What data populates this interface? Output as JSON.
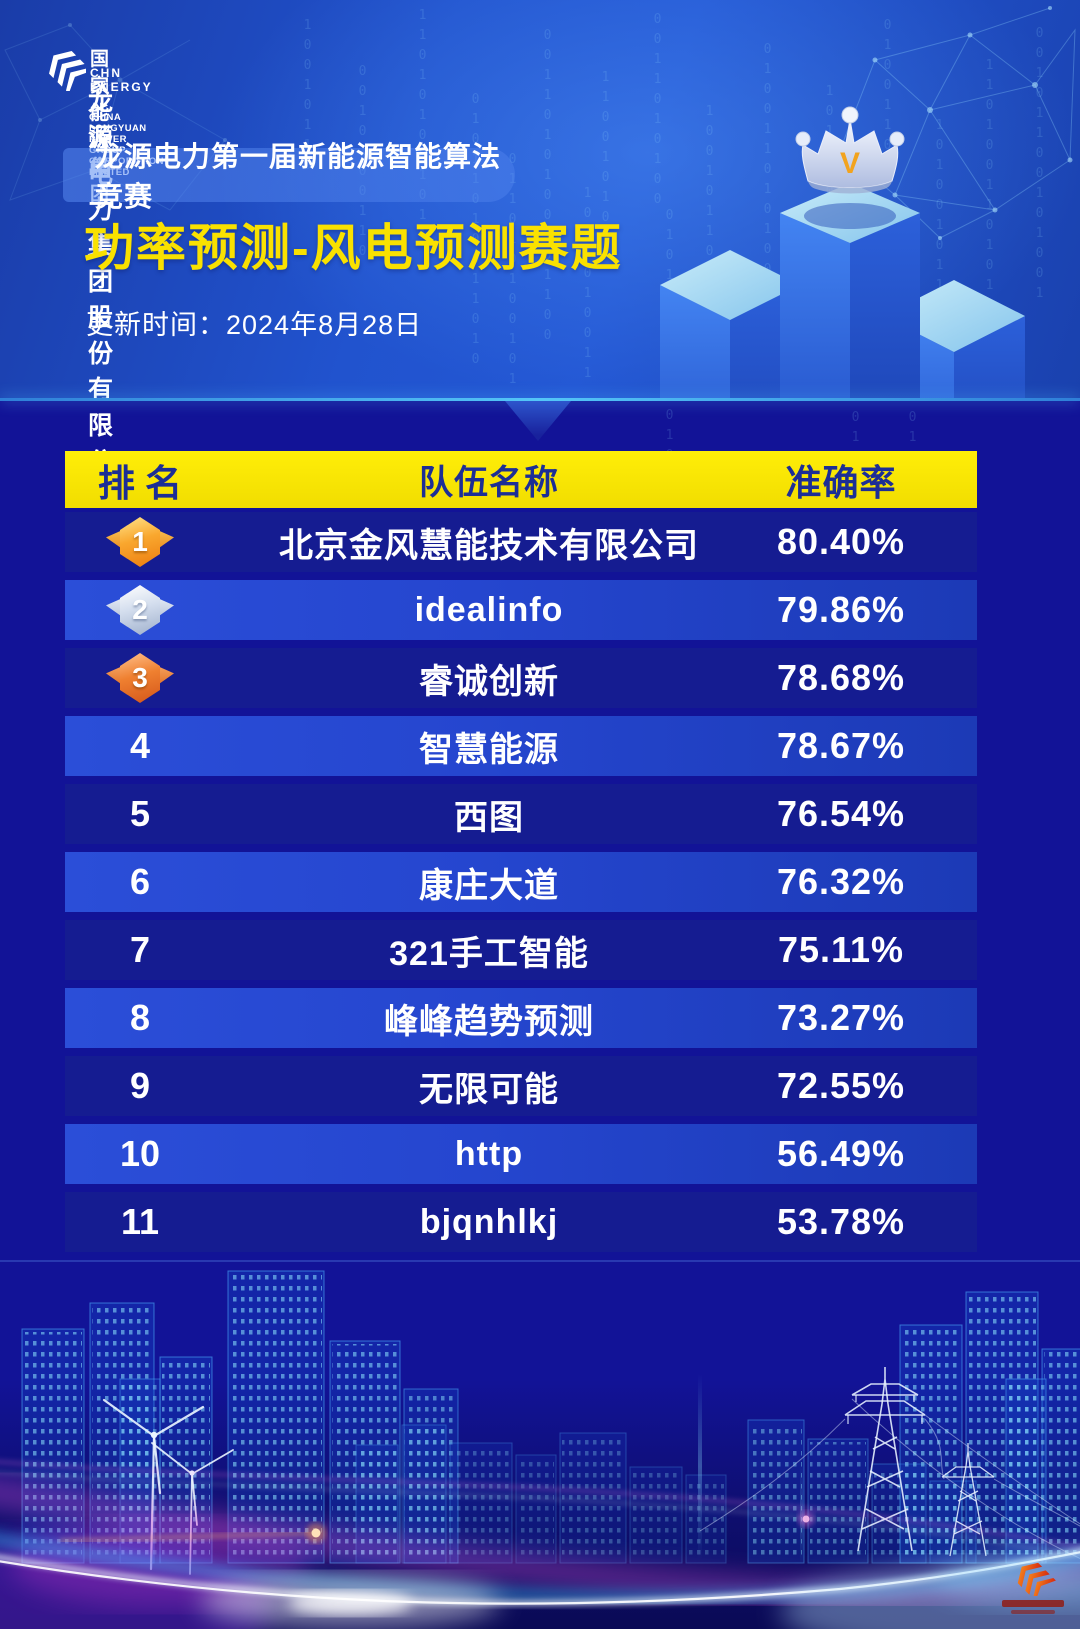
{
  "brand": {
    "group_name_cn": "国家能源集团",
    "group_name_en": "CHN ENERGY",
    "company_name_cn": "龙源电力集团股份有限公司",
    "company_name_en": "CHINA LONGYUAN POWER GROUP CORPORATION LIMITED"
  },
  "hero": {
    "competition_name": "龙源电力第一届新能源智能算法竞赛",
    "event_title": "功率预测-风电预测赛题",
    "update_time": "更新时间：2024年8月28日",
    "crown_letter": "V"
  },
  "colors": {
    "accent_yellow": "#f8e400",
    "header_text_navy": "#1c2e96",
    "deep_blue": "#121397",
    "row_dark": "#151c91",
    "row_bright": "#2b4ed8",
    "divider_cyan": "#46bdf5",
    "gold": "#f5a028",
    "silver": "#c9d5e8",
    "bronze": "#e86f2c",
    "city_glow_cyan": "#35c8ff",
    "streak_magenta": "#e553d6"
  },
  "chart_data": {
    "type": "table",
    "title": "功率预测-风电预测赛题",
    "columns": [
      "排  名",
      "队伍名称",
      "准确率"
    ],
    "rows": [
      {
        "rank": "1",
        "team": "北京金风慧能技术有限公司",
        "accuracy": "80.40%",
        "medal": "gold"
      },
      {
        "rank": "2",
        "team": "idealinfo",
        "accuracy": "79.86%",
        "medal": "silver"
      },
      {
        "rank": "3",
        "team": "睿诚创新",
        "accuracy": "78.68%",
        "medal": "bronze"
      },
      {
        "rank": "4",
        "team": "智慧能源",
        "accuracy": "78.67%",
        "medal": ""
      },
      {
        "rank": "5",
        "team": "西图",
        "accuracy": "76.54%",
        "medal": ""
      },
      {
        "rank": "6",
        "team": "康庄大道",
        "accuracy": "76.32%",
        "medal": ""
      },
      {
        "rank": "7",
        "team": "321手工智能",
        "accuracy": "75.11%",
        "medal": ""
      },
      {
        "rank": "8",
        "team": "峰峰趋势预测",
        "accuracy": "73.27%",
        "medal": ""
      },
      {
        "rank": "9",
        "team": "无限可能",
        "accuracy": "72.55%",
        "medal": ""
      },
      {
        "rank": "10",
        "team": "http",
        "accuracy": "56.49%",
        "medal": ""
      },
      {
        "rank": "11",
        "team": "bjqnhlkj",
        "accuracy": "53.78%",
        "medal": ""
      }
    ]
  }
}
